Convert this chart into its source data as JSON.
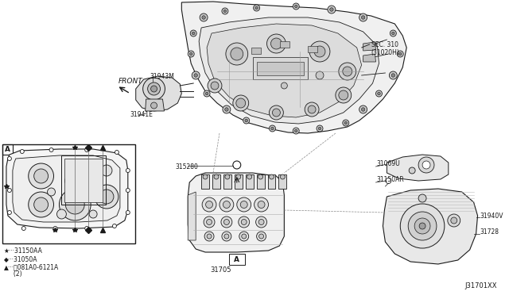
{
  "bg_color": "#ffffff",
  "line_color": "#1a1a1a",
  "labels": {
    "sec310": "SEC. 310\n(31020H)",
    "31943M": "31943M",
    "31941E": "31941E",
    "31528O": "315280",
    "31705": "31705",
    "31069U": "31069U",
    "31150AR": "31150AR",
    "31940V": "31940V",
    "31728": "31728",
    "front": "FRONT",
    "view_a": "A",
    "j31701xx": "J31701XX",
    "legend1": "★···31150AA",
    "legend2": "◆···31050A",
    "legend3": "▲···Ⓑ081A0-6121A",
    "legend3b": "     (2)"
  },
  "font_size_label": 5.5,
  "font_size_legend": 5.5
}
